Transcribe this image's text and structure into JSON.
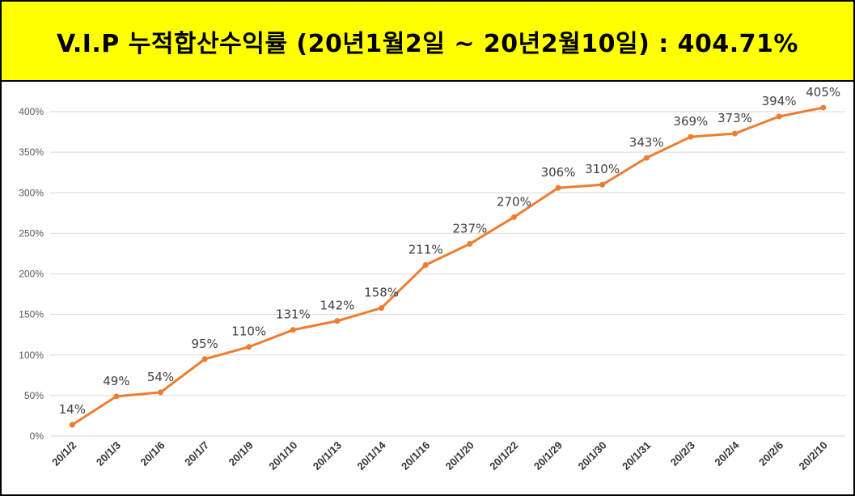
{
  "header": {
    "title": "V.I.P 누적합산수익률 (20년1월2일  ~  20년2월10일) : 404.71%"
  },
  "colors": {
    "title_bg": "#ffff00",
    "line": "#ed7d31",
    "grid": "#d9d9d9"
  },
  "chart_data": {
    "type": "line",
    "title": "V.I.P 누적합산수익률 (20년1월2일  ~  20년2월10일) : 404.71%",
    "xlabel": "",
    "ylabel": "",
    "ylim": [
      0,
      400
    ],
    "grid": true,
    "categories": [
      "20/1/2",
      "20/1/3",
      "20/1/6",
      "20/1/7",
      "20/1/9",
      "20/1/10",
      "20/1/13",
      "20/1/14",
      "20/1/16",
      "20/1/20",
      "20/1/22",
      "20/1/29",
      "20/1/30",
      "20/1/31",
      "20/2/3",
      "20/2/4",
      "20/2/6",
      "20/2/10"
    ],
    "y_ticks": [
      0,
      50,
      100,
      150,
      200,
      250,
      300,
      350,
      400
    ],
    "y_tick_labels": [
      "0%",
      "50%",
      "100%",
      "150%",
      "200%",
      "250%",
      "300%",
      "350%",
      "400%"
    ],
    "series": [
      {
        "name": "누적합산수익률",
        "values": [
          14,
          49,
          54,
          95,
          110,
          131,
          142,
          158,
          211,
          237,
          270,
          306,
          310,
          343,
          369,
          373,
          394,
          405
        ],
        "labels": [
          "14%",
          "49%",
          "54%",
          "95%",
          "110%",
          "131%",
          "142%",
          "158%",
          "211%",
          "237%",
          "270%",
          "306%",
          "310%",
          "343%",
          "369%",
          "373%",
          "394%",
          "405%"
        ]
      }
    ]
  }
}
